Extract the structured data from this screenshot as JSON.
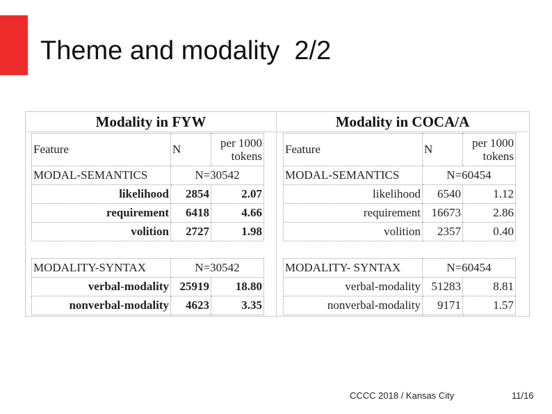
{
  "slide": {
    "title": "Theme and modality  2/2",
    "footer_left": "CCCC 2018 / Kansas City",
    "page_number": "11/16",
    "accent_color": "#ee2b2b"
  },
  "figure": {
    "left": {
      "title": "Modality in FYW",
      "header": {
        "feature": "Feature",
        "n": "N",
        "per1": "per 1000",
        "per2": "tokens"
      },
      "semantics": {
        "label": "MODAL-SEMANTICS",
        "total": "N=30542",
        "rows": [
          {
            "label": "likelihood",
            "n": "2854",
            "per": "2.07"
          },
          {
            "label": "requirement",
            "n": "6418",
            "per": "4.66"
          },
          {
            "label": "volition",
            "n": "2727",
            "per": "1.98"
          }
        ]
      },
      "syntax": {
        "label": "MODALITY-SYNTAX",
        "total": "N=30542",
        "rows": [
          {
            "label": "verbal-modality",
            "n": "25919",
            "per": "18.80"
          },
          {
            "label": "nonverbal-modality",
            "n": "4623",
            "per": "3.35"
          }
        ]
      },
      "highlight_color": "#c41a1a"
    },
    "right": {
      "title": "Modality in COCA/A",
      "header": {
        "feature": "Feature",
        "n": "N",
        "per1": "per 1000",
        "per2": "tokens"
      },
      "semantics": {
        "label": "MODAL-SEMANTICS",
        "total": "N=60454",
        "rows": [
          {
            "label": "likelihood",
            "n": "6540",
            "per": "1.12"
          },
          {
            "label": "requirement",
            "n": "16673",
            "per": "2.86"
          },
          {
            "label": "volition",
            "n": "2357",
            "per": "0.40"
          }
        ]
      },
      "syntax": {
        "label": "MODALITY- SYNTAX",
        "total": "N=60454",
        "rows": [
          {
            "label": "verbal-modality",
            "n": "51283",
            "per": "8.81"
          },
          {
            "label": "nonverbal-modality",
            "n": "9171",
            "per": "1.57"
          }
        ]
      }
    }
  }
}
